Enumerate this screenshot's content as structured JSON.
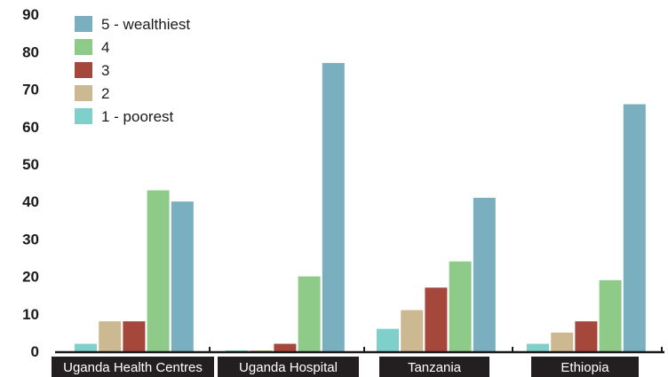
{
  "chart_data": {
    "type": "bar",
    "categories": [
      "Uganda Health Centres",
      "Uganda Hospital",
      "Tanzania",
      "Ethiopia"
    ],
    "series": [
      {
        "name": "1 - poorest",
        "color": "#7fcfcb",
        "values": [
          2,
          0,
          6,
          2
        ]
      },
      {
        "name": "2",
        "color": "#cdb991",
        "values": [
          8,
          0,
          11,
          5
        ]
      },
      {
        "name": "3",
        "color": "#a6473b",
        "values": [
          8,
          2,
          17,
          8
        ]
      },
      {
        "name": "4",
        "color": "#8ecb88",
        "values": [
          43,
          20,
          24,
          19
        ]
      },
      {
        "name": "5 - wealthiest",
        "color": "#7aafbf",
        "values": [
          40,
          77,
          41,
          66
        ]
      }
    ],
    "yticks": [
      "0",
      "10",
      "20",
      "30",
      "40",
      "50",
      "60",
      "70",
      "80",
      "90"
    ],
    "ylim": [
      0,
      90
    ],
    "grid": false,
    "legend_position": "top-left"
  }
}
